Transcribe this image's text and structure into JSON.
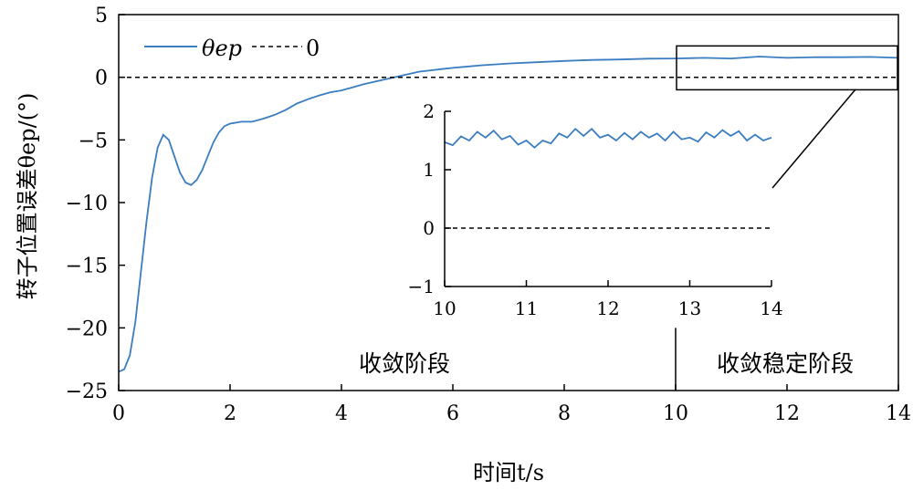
{
  "chart_data": [
    {
      "type": "line",
      "xlabel": "时间t/s",
      "ylabel": "转子位置误差θep/(°)",
      "xlim": [
        0,
        14
      ],
      "ylim": [
        -25,
        5
      ],
      "xticks": [
        "0",
        "2",
        "4",
        "6",
        "8",
        "10",
        "12",
        "14"
      ],
      "yticks": [
        "5",
        "0",
        "−5",
        "−10",
        "−15",
        "−20",
        "−25"
      ],
      "grid": false,
      "legend": "top-left",
      "series": [
        {
          "name": "θep",
          "color": "#3a7dc0",
          "style": "solid",
          "x": [
            0,
            0.1,
            0.2,
            0.3,
            0.4,
            0.5,
            0.6,
            0.7,
            0.8,
            0.9,
            1.0,
            1.1,
            1.2,
            1.3,
            1.4,
            1.5,
            1.6,
            1.7,
            1.8,
            1.9,
            2.0,
            2.2,
            2.4,
            2.6,
            2.8,
            3.0,
            3.2,
            3.4,
            3.6,
            3.8,
            4.0,
            4.2,
            4.4,
            4.6,
            4.8,
            5.0,
            5.2,
            5.4,
            5.6,
            5.8,
            6.0,
            6.5,
            7.0,
            7.5,
            8.0,
            8.5,
            9.0,
            9.5,
            10.0,
            10.5,
            11.0,
            11.5,
            12.0,
            12.5,
            13.0,
            13.5,
            14.0
          ],
          "y": [
            -23.5,
            -23.3,
            -22.2,
            -19.5,
            -15.5,
            -11.5,
            -8.0,
            -5.6,
            -4.6,
            -5.0,
            -6.3,
            -7.6,
            -8.4,
            -8.6,
            -8.2,
            -7.4,
            -6.3,
            -5.2,
            -4.4,
            -3.9,
            -3.7,
            -3.55,
            -3.55,
            -3.3,
            -3.0,
            -2.6,
            -2.1,
            -1.75,
            -1.45,
            -1.2,
            -1.05,
            -0.8,
            -0.55,
            -0.35,
            -0.15,
            0.05,
            0.25,
            0.45,
            0.55,
            0.65,
            0.75,
            0.95,
            1.1,
            1.2,
            1.3,
            1.38,
            1.42,
            1.48,
            1.5,
            1.55,
            1.5,
            1.65,
            1.55,
            1.6,
            1.6,
            1.62,
            1.55
          ]
        },
        {
          "name": "0",
          "color": "#000000",
          "style": "dashed",
          "x": [
            0,
            14
          ],
          "y": [
            0,
            0
          ]
        }
      ],
      "annotations": [
        {
          "text": "收敛阶段",
          "x": 4.9,
          "y": -23.4
        },
        {
          "text": "收敛稳定阶段",
          "x": 12.1,
          "y": -23.4
        }
      ],
      "separator_x": 10,
      "zoom_box": {
        "xlim": [
          10,
          14
        ],
        "ylim": [
          -1,
          2.5
        ]
      }
    },
    {
      "type": "line",
      "xlim": [
        10,
        14
      ],
      "ylim": [
        -1,
        2
      ],
      "xticks": [
        "10",
        "11",
        "12",
        "13",
        "14"
      ],
      "yticks": [
        "2",
        "1",
        "0",
        "−1"
      ],
      "grid": false,
      "series": [
        {
          "name": "θep",
          "color": "#3a7dc0",
          "style": "solid",
          "x": [
            10.0,
            10.1,
            10.2,
            10.3,
            10.4,
            10.5,
            10.6,
            10.7,
            10.8,
            10.9,
            11.0,
            11.1,
            11.2,
            11.3,
            11.4,
            11.5,
            11.6,
            11.7,
            11.8,
            11.9,
            12.0,
            12.1,
            12.2,
            12.3,
            12.4,
            12.5,
            12.6,
            12.7,
            12.8,
            12.9,
            13.0,
            13.1,
            13.2,
            13.3,
            13.4,
            13.5,
            13.6,
            13.7,
            13.8,
            13.9,
            14.0
          ],
          "y": [
            1.47,
            1.42,
            1.57,
            1.5,
            1.65,
            1.55,
            1.67,
            1.52,
            1.58,
            1.43,
            1.5,
            1.38,
            1.5,
            1.45,
            1.62,
            1.55,
            1.7,
            1.58,
            1.7,
            1.55,
            1.6,
            1.5,
            1.63,
            1.52,
            1.65,
            1.55,
            1.62,
            1.5,
            1.65,
            1.52,
            1.55,
            1.48,
            1.64,
            1.55,
            1.68,
            1.58,
            1.66,
            1.5,
            1.6,
            1.5,
            1.55
          ]
        },
        {
          "name": "0",
          "color": "#000000",
          "style": "dashed",
          "x": [
            10,
            14
          ],
          "y": [
            0,
            0
          ]
        }
      ]
    }
  ]
}
